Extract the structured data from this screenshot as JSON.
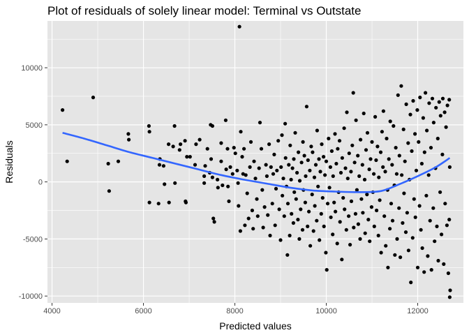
{
  "chart_data": {
    "type": "scatter",
    "title": "Plot of residuals of solely linear model: Terminal vs Outstate",
    "xlabel": "Predicted values",
    "ylabel": "Residuals",
    "xlim": [
      3900,
      13000
    ],
    "ylim": [
      -10600,
      14100
    ],
    "xticks": [
      4000,
      6000,
      8000,
      10000,
      12000
    ],
    "xtick_labels": [
      "4000",
      "6000",
      "8000",
      "10000",
      "12000"
    ],
    "yticks": [
      -10000,
      -5000,
      0,
      5000,
      10000
    ],
    "ytick_labels": [
      "-10000",
      "-5000",
      "0",
      "5000",
      "10000"
    ],
    "grid": true,
    "background": "#e5e5e5",
    "gridline_color": "#ffffff",
    "point_color": "#000000",
    "smooth_color": "#3366ff",
    "points": [
      [
        4230,
        6300
      ],
      [
        4330,
        1800
      ],
      [
        4900,
        7400
      ],
      [
        5230,
        1600
      ],
      [
        5250,
        -800
      ],
      [
        5450,
        1800
      ],
      [
        5670,
        4200
      ],
      [
        5680,
        3700
      ],
      [
        6120,
        4900
      ],
      [
        6130,
        4400
      ],
      [
        6130,
        -1800
      ],
      [
        6330,
        -1900
      ],
      [
        6350,
        1500
      ],
      [
        6360,
        2000
      ],
      [
        6440,
        1400
      ],
      [
        6460,
        -200
      ],
      [
        6550,
        3300
      ],
      [
        6560,
        -1800
      ],
      [
        6650,
        3100
      ],
      [
        6680,
        4900
      ],
      [
        6690,
        -100
      ],
      [
        6790,
        2800
      ],
      [
        6810,
        3300
      ],
      [
        6910,
        3600
      ],
      [
        6920,
        -1700
      ],
      [
        6930,
        -1800
      ],
      [
        6950,
        2200
      ],
      [
        7020,
        2200
      ],
      [
        7130,
        1500
      ],
      [
        7150,
        3300
      ],
      [
        7230,
        3700
      ],
      [
        7330,
        500
      ],
      [
        7330,
        -100
      ],
      [
        7350,
        1400
      ],
      [
        7400,
        2900
      ],
      [
        7450,
        800
      ],
      [
        7470,
        5000
      ],
      [
        7480,
        2000
      ],
      [
        7510,
        4900
      ],
      [
        7510,
        400
      ],
      [
        7530,
        -3200
      ],
      [
        7550,
        -3500
      ],
      [
        7620,
        200
      ],
      [
        7630,
        -500
      ],
      [
        7700,
        1800
      ],
      [
        7700,
        3400
      ],
      [
        7730,
        -300
      ],
      [
        7800,
        5400
      ],
      [
        7810,
        1100
      ],
      [
        7840,
        2900
      ],
      [
        7850,
        -400
      ],
      [
        7870,
        -1700
      ],
      [
        7900,
        1300
      ],
      [
        7950,
        700
      ],
      [
        7980,
        3000
      ],
      [
        8010,
        2500
      ],
      [
        8050,
        1000
      ],
      [
        8070,
        -100
      ],
      [
        8080,
        -2100
      ],
      [
        8100,
        13600
      ],
      [
        8120,
        -4300
      ],
      [
        8130,
        4400
      ],
      [
        8160,
        2200
      ],
      [
        8180,
        700
      ],
      [
        8200,
        2900
      ],
      [
        8220,
        -3800
      ],
      [
        8240,
        600
      ],
      [
        8270,
        -1000
      ],
      [
        8300,
        -3200
      ],
      [
        8330,
        1300
      ],
      [
        8350,
        3500
      ],
      [
        8380,
        -2500
      ],
      [
        8400,
        -4100
      ],
      [
        8420,
        1800
      ],
      [
        8450,
        300
      ],
      [
        8480,
        -1500
      ],
      [
        8500,
        -3000
      ],
      [
        8530,
        1200
      ],
      [
        8550,
        5200
      ],
      [
        8580,
        2900
      ],
      [
        8600,
        -700
      ],
      [
        8620,
        -4000
      ],
      [
        8650,
        -2200
      ],
      [
        8680,
        1500
      ],
      [
        8700,
        500
      ],
      [
        8720,
        -2900
      ],
      [
        8750,
        3300
      ],
      [
        8770,
        -4700
      ],
      [
        8790,
        1300
      ],
      [
        8820,
        -1900
      ],
      [
        8840,
        700
      ],
      [
        8860,
        2400
      ],
      [
        8880,
        -3800
      ],
      [
        8900,
        -600
      ],
      [
        8920,
        1000
      ],
      [
        8950,
        3600
      ],
      [
        8970,
        -2400
      ],
      [
        9000,
        -5100
      ],
      [
        9010,
        1300
      ],
      [
        9030,
        4100
      ],
      [
        9040,
        -1200
      ],
      [
        9060,
        300
      ],
      [
        9080,
        -3000
      ],
      [
        9100,
        5100
      ],
      [
        9110,
        2100
      ],
      [
        9130,
        -400
      ],
      [
        9150,
        -6400
      ],
      [
        9160,
        -1900
      ],
      [
        9180,
        1500
      ],
      [
        9200,
        -4700
      ],
      [
        9210,
        3200
      ],
      [
        9230,
        200
      ],
      [
        9240,
        -2800
      ],
      [
        9260,
        1200
      ],
      [
        9280,
        -3600
      ],
      [
        9290,
        2000
      ],
      [
        9300,
        -900
      ],
      [
        9320,
        4300
      ],
      [
        9340,
        -1500
      ],
      [
        9360,
        800
      ],
      [
        9380,
        -3300
      ],
      [
        9390,
        2600
      ],
      [
        9410,
        -5000
      ],
      [
        9420,
        100
      ],
      [
        9440,
        -2400
      ],
      [
        9460,
        1700
      ],
      [
        9480,
        -4200
      ],
      [
        9490,
        3500
      ],
      [
        9500,
        -700
      ],
      [
        9520,
        2300
      ],
      [
        9540,
        -1800
      ],
      [
        9550,
        500
      ],
      [
        9570,
        6600
      ],
      [
        9590,
        -3900
      ],
      [
        9600,
        1900
      ],
      [
        9620,
        -2600
      ],
      [
        9640,
        1000
      ],
      [
        9650,
        -5600
      ],
      [
        9670,
        3100
      ],
      [
        9690,
        -1100
      ],
      [
        9700,
        2600
      ],
      [
        9720,
        -4300
      ],
      [
        9740,
        400
      ],
      [
        9750,
        -2100
      ],
      [
        9770,
        1500
      ],
      [
        9790,
        -3400
      ],
      [
        9800,
        4500
      ],
      [
        9820,
        -400
      ],
      [
        9840,
        2000
      ],
      [
        9850,
        -5100
      ],
      [
        9870,
        900
      ],
      [
        9890,
        -2800
      ],
      [
        9900,
        3300
      ],
      [
        9920,
        -1400
      ],
      [
        9940,
        2200
      ],
      [
        9950,
        -3900
      ],
      [
        9970,
        600
      ],
      [
        9990,
        -6200
      ],
      [
        10000,
        1800
      ],
      [
        10010,
        -7700
      ],
      [
        10030,
        -1900
      ],
      [
        10050,
        3800
      ],
      [
        10070,
        -500
      ],
      [
        10090,
        1300
      ],
      [
        10100,
        -3100
      ],
      [
        10120,
        2700
      ],
      [
        10140,
        -4600
      ],
      [
        10150,
        500
      ],
      [
        10170,
        -1800
      ],
      [
        10190,
        4200
      ],
      [
        10200,
        -2600
      ],
      [
        10220,
        1600
      ],
      [
        10240,
        -5400
      ],
      [
        10250,
        2900
      ],
      [
        10270,
        -900
      ],
      [
        10290,
        3600
      ],
      [
        10300,
        -3500
      ],
      [
        10320,
        800
      ],
      [
        10340,
        -6800
      ],
      [
        10350,
        2100
      ],
      [
        10370,
        -1400
      ],
      [
        10390,
        4700
      ],
      [
        10400,
        -2400
      ],
      [
        10420,
        1200
      ],
      [
        10440,
        -4200
      ],
      [
        10450,
        6100
      ],
      [
        10470,
        300
      ],
      [
        10490,
        -3000
      ],
      [
        10500,
        2500
      ],
      [
        10520,
        -5500
      ],
      [
        10540,
        900
      ],
      [
        10550,
        -1700
      ],
      [
        10570,
        3200
      ],
      [
        10590,
        7800
      ],
      [
        10600,
        -4000
      ],
      [
        10620,
        1700
      ],
      [
        10640,
        -2800
      ],
      [
        10650,
        5400
      ],
      [
        10670,
        -700
      ],
      [
        10690,
        2300
      ],
      [
        10700,
        -3700
      ],
      [
        10720,
        500
      ],
      [
        10740,
        -5000
      ],
      [
        10750,
        3700
      ],
      [
        10770,
        -1500
      ],
      [
        10790,
        1500
      ],
      [
        10800,
        -2700
      ],
      [
        10820,
        6000
      ],
      [
        10840,
        200
      ],
      [
        10850,
        -4500
      ],
      [
        10870,
        2800
      ],
      [
        10890,
        -1100
      ],
      [
        10900,
        4300
      ],
      [
        10920,
        -3300
      ],
      [
        10940,
        1100
      ],
      [
        10950,
        -5200
      ],
      [
        10970,
        2000
      ],
      [
        10990,
        -2200
      ],
      [
        11000,
        3500
      ],
      [
        11020,
        -900
      ],
      [
        11040,
        700
      ],
      [
        11050,
        -3900
      ],
      [
        11070,
        5700
      ],
      [
        11090,
        1900
      ],
      [
        11100,
        -2500
      ],
      [
        11120,
        3100
      ],
      [
        11140,
        -4700
      ],
      [
        11150,
        400
      ],
      [
        11170,
        -1600
      ],
      [
        11190,
        2600
      ],
      [
        11200,
        -6200
      ],
      [
        11220,
        4400
      ],
      [
        11240,
        1300
      ],
      [
        11250,
        6200
      ],
      [
        11270,
        -3000
      ],
      [
        11290,
        900
      ],
      [
        11300,
        -5600
      ],
      [
        11320,
        3800
      ],
      [
        11340,
        -700
      ],
      [
        11350,
        -7500
      ],
      [
        11370,
        2000
      ],
      [
        11390,
        -4100
      ],
      [
        11400,
        5300
      ],
      [
        11420,
        -1900
      ],
      [
        11440,
        1500
      ],
      [
        11450,
        -3400
      ],
      [
        11470,
        4900
      ],
      [
        11490,
        -300
      ],
      [
        11500,
        -6400
      ],
      [
        11520,
        3000
      ],
      [
        11540,
        700
      ],
      [
        11550,
        -5000
      ],
      [
        11570,
        7600
      ],
      [
        11590,
        -2300
      ],
      [
        11600,
        2300
      ],
      [
        11620,
        -6600
      ],
      [
        11640,
        8400
      ],
      [
        11650,
        600
      ],
      [
        11670,
        -3600
      ],
      [
        11690,
        4600
      ],
      [
        11700,
        -1000
      ],
      [
        11720,
        1800
      ],
      [
        11740,
        -4400
      ],
      [
        11750,
        6800
      ],
      [
        11770,
        -2700
      ],
      [
        11790,
        3400
      ],
      [
        11800,
        -6000
      ],
      [
        11820,
        200
      ],
      [
        11840,
        5900
      ],
      [
        11850,
        -8800
      ],
      [
        11870,
        2700
      ],
      [
        11890,
        -4900
      ],
      [
        11900,
        7100
      ],
      [
        11920,
        -1500
      ],
      [
        11940,
        4200
      ],
      [
        11950,
        -3100
      ],
      [
        11970,
        1000
      ],
      [
        11990,
        6300
      ],
      [
        12000,
        -7500
      ],
      [
        12020,
        3500
      ],
      [
        12040,
        -2100
      ],
      [
        12050,
        7400
      ],
      [
        12070,
        -4200
      ],
      [
        12090,
        1600
      ],
      [
        12100,
        -5800
      ],
      [
        12120,
        5600
      ],
      [
        12140,
        -7900
      ],
      [
        12150,
        2600
      ],
      [
        12170,
        7800
      ],
      [
        12190,
        -1200
      ],
      [
        12200,
        4500
      ],
      [
        12220,
        -6500
      ],
      [
        12240,
        600
      ],
      [
        12250,
        6900
      ],
      [
        12270,
        -3400
      ],
      [
        12290,
        3000
      ],
      [
        12300,
        -7700
      ],
      [
        12320,
        7300
      ],
      [
        12340,
        -2300
      ],
      [
        12350,
        5200
      ],
      [
        12370,
        -5200
      ],
      [
        12390,
        1200
      ],
      [
        12400,
        6500
      ],
      [
        12420,
        -3900
      ],
      [
        12440,
        3800
      ],
      [
        12450,
        -6900
      ],
      [
        12470,
        7000
      ],
      [
        12490,
        -900
      ],
      [
        12500,
        5800
      ],
      [
        12520,
        -4600
      ],
      [
        12540,
        2400
      ],
      [
        12550,
        7300
      ],
      [
        12570,
        -7200
      ],
      [
        12590,
        6100
      ],
      [
        12600,
        -1900
      ],
      [
        12620,
        4800
      ],
      [
        12640,
        -3800
      ],
      [
        12650,
        6700
      ],
      [
        12670,
        -8000
      ],
      [
        12690,
        7200
      ],
      [
        12700,
        1300
      ],
      [
        12710,
        -9500
      ],
      [
        12700,
        -10100
      ],
      [
        12690,
        -3300
      ]
    ],
    "smooth": [
      [
        4230,
        4300
      ],
      [
        4700,
        3800
      ],
      [
        5200,
        3200
      ],
      [
        5700,
        2600
      ],
      [
        6200,
        2100
      ],
      [
        6700,
        1600
      ],
      [
        7200,
        1100
      ],
      [
        7700,
        600
      ],
      [
        8200,
        200
      ],
      [
        8700,
        -150
      ],
      [
        9200,
        -500
      ],
      [
        9700,
        -750
      ],
      [
        10200,
        -850
      ],
      [
        10700,
        -900
      ],
      [
        11200,
        -800
      ],
      [
        11600,
        -200
      ],
      [
        12000,
        500
      ],
      [
        12400,
        1300
      ],
      [
        12700,
        2100
      ]
    ]
  }
}
